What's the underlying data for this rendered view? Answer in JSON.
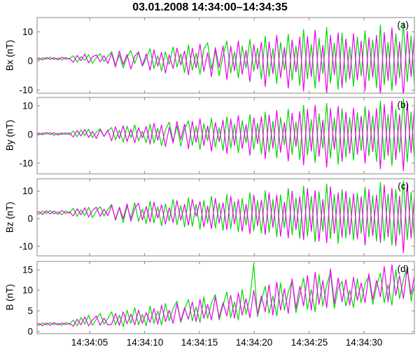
{
  "title": "03.01.2008 14:34:00–14:34:35",
  "colors": {
    "series1": "#00d900",
    "series2": "#ee00ee",
    "frame": "#888888",
    "text": "#000000"
  },
  "chart_data": {
    "type": "line",
    "title": "03.01.2008 14:34:00–14:34:35",
    "x": {
      "unit": "time (hh:mm:ss)",
      "start": 0,
      "step": 0.35,
      "lim": [
        0.2,
        34.6
      ],
      "ticks": [
        5,
        10,
        15,
        20,
        25,
        30
      ],
      "tick_labels": [
        "14:34:05",
        "14:34:10",
        "14:34:15",
        "14:34:20",
        "14:34:25",
        "14:34:30"
      ]
    },
    "panels": [
      {
        "label": "(a)",
        "ylabel": "Bx (nT)",
        "ylim": [
          -11.1,
          14.9
        ],
        "yticks": [
          10,
          0,
          -10
        ],
        "ytick_labels": [
          "10",
          "0",
          "-10"
        ],
        "series": [
          {
            "name": "green",
            "color_key": "series1",
            "values": [
              0.8,
              0.4,
              1.1,
              0.6,
              1.3,
              0.5,
              1.0,
              0.3,
              1.2,
              0.7,
              1.8,
              -0.4,
              1.5,
              0.2,
              2.2,
              -0.8,
              1.1,
              2.5,
              -0.2,
              1.6,
              3.2,
              -1.5,
              2.1,
              -2.4,
              1.4,
              3.6,
              -0.9,
              2.8,
              -1.8,
              0.9,
              4.2,
              -2.6,
              1.8,
              -3.5,
              3.1,
              -1.2,
              4.8,
              -2.1,
              2.4,
              -4.0,
              5.5,
              -3.2,
              2.6,
              -4.6,
              4.1,
              6.2,
              -2.8,
              3.4,
              -5.1,
              1.9,
              6.8,
              -4.2,
              3.1,
              -5.8,
              5.2,
              -2.4,
              7.4,
              -3.6,
              4.4,
              -6.2,
              8.5,
              -5.4,
              4.2,
              -7.8,
              6.4,
              -3.1,
              9.2,
              -6.6,
              5.1,
              -8.4,
              10.8,
              -6.2,
              5.6,
              -9.4,
              7.8,
              -4.4,
              11.5,
              -7.6,
              6.2,
              -9.8,
              9.6,
              -7.4,
              4.8,
              -8.8,
              8.2,
              -5.2,
              10.4,
              -6.8,
              7.2,
              -9.2,
              12.4,
              -8.2,
              6.4,
              -10.2,
              9.4,
              -5.8,
              13.0,
              -7.2,
              8.6,
              -10.6
            ]
          },
          {
            "name": "magenta",
            "color_key": "series2",
            "values": [
              0.6,
              1.0,
              0.3,
              1.2,
              0.5,
              1.1,
              0.4,
              1.3,
              0.6,
              0.9,
              -0.5,
              1.9,
              0.1,
              2.4,
              -0.7,
              1.4,
              2.1,
              -0.3,
              1.8,
              -0.9,
              2.6,
              -2.1,
              3.4,
              -1.2,
              2.2,
              -2.8,
              1.6,
              3.1,
              -1.6,
              2.4,
              -3.2,
              3.8,
              -1.8,
              2.9,
              -4.2,
              2.1,
              -2.6,
              4.4,
              -1.4,
              3.4,
              -4.8,
              4.4,
              -2.4,
              5.8,
              -3.6,
              2.8,
              -5.4,
              4.6,
              -2.2,
              5.2,
              -6.4,
              5.1,
              -3.4,
              6.8,
              -4.6,
              3.6,
              -7.1,
              5.6,
              -2.8,
              6.4,
              -8.8,
              6.6,
              -4.4,
              8.8,
              -5.8,
              4.6,
              -9.4,
              7.2,
              -3.8,
              8.2,
              -10.4,
              8.4,
              -5.4,
              10.6,
              -7.2,
              5.4,
              -11.2,
              8.8,
              -4.8,
              9.6,
              -9.2,
              7.6,
              -6.2,
              9.4,
              -6.6,
              6.8,
              -10.2,
              8.0,
              -5.6,
              8.8,
              -11.8,
              9.8,
              -6.8,
              11.4,
              -8.4,
              6.6,
              -12.2,
              10.2,
              -5.4,
              11.2
            ]
          }
        ]
      },
      {
        "label": "(b)",
        "ylabel": "By (nT)",
        "ylim": [
          -13.7,
          12.9
        ],
        "yticks": [
          10,
          0,
          -10
        ],
        "ytick_labels": [
          "10",
          "0",
          "-10"
        ],
        "series": [
          {
            "name": "green",
            "color_key": "series1",
            "values": [
              0.4,
              -0.2,
              0.6,
              0.1,
              0.7,
              -0.3,
              0.5,
              0.0,
              0.6,
              -0.1,
              1.2,
              -0.8,
              1.6,
              -0.4,
              1.9,
              -1.1,
              0.8,
              2.0,
              -0.6,
              1.3,
              2.4,
              -1.9,
              1.5,
              -2.7,
              2.9,
              -1.1,
              3.3,
              -2.2,
              1.1,
              -2.9,
              3.6,
              -3.0,
              2.2,
              -3.9,
              1.6,
              4.3,
              -2.4,
              3.0,
              -4.1,
              2.0,
              4.8,
              -3.8,
              2.9,
              -5.2,
              3.8,
              -2.2,
              5.6,
              -4.4,
              2.4,
              -5.6,
              6.2,
              -4.8,
              3.6,
              -6.4,
              4.8,
              -2.9,
              6.9,
              -5.2,
              3.9,
              -6.8,
              7.8,
              -6.1,
              4.6,
              -8.2,
              5.9,
              -3.6,
              8.8,
              -7.0,
              4.4,
              -8.8,
              10.2,
              -7.2,
              5.2,
              -9.8,
              7.2,
              -4.8,
              10.8,
              -8.2,
              5.8,
              -10.4,
              9.0,
              -8.0,
              6.0,
              -9.0,
              7.6,
              -5.6,
              9.8,
              -7.4,
              6.6,
              -9.4,
              11.6,
              -8.8,
              7.0,
              -10.8,
              8.8,
              -6.2,
              12.4,
              -9.6,
              7.8,
              -11.2
            ]
          },
          {
            "name": "magenta",
            "color_key": "series2",
            "values": [
              -0.3,
              0.5,
              -0.1,
              0.7,
              0.0,
              0.6,
              -0.2,
              0.5,
              0.1,
              0.6,
              -0.9,
              1.4,
              -0.5,
              1.8,
              -1.0,
              1.1,
              -1.4,
              1.7,
              -0.7,
              1.5,
              -2.2,
              2.7,
              -1.4,
              3.1,
              -2.5,
              1.8,
              -2.9,
              2.4,
              -1.2,
              2.8,
              -3.4,
              3.9,
              -2.0,
              3.3,
              -4.2,
              2.5,
              -3.0,
              4.5,
              -1.8,
              3.6,
              -5.0,
              4.6,
              -2.8,
              5.5,
              -3.9,
              3.0,
              -5.8,
              4.2,
              -2.5,
              5.0,
              -6.6,
              5.4,
              -3.8,
              6.6,
              -4.9,
              3.4,
              -7.2,
              5.8,
              -3.2,
              6.2,
              -8.4,
              6.8,
              -4.8,
              8.4,
              -6.2,
              4.2,
              -9.2,
              7.4,
              -4.2,
              8.0,
              -10.6,
              8.8,
              -5.8,
              10.2,
              -7.6,
              5.0,
              -11.4,
              9.0,
              -5.2,
              9.8,
              -9.4,
              7.8,
              -6.6,
              9.2,
              -7.0,
              6.4,
              -10.0,
              8.4,
              -6.0,
              9.0,
              -12.0,
              10.4,
              -7.4,
              11.6,
              -8.8,
              7.0,
              -12.6,
              10.8,
              -6.4,
              11.8
            ]
          }
        ]
      },
      {
        "label": "(c)",
        "ylabel": "Bz (nT)",
        "ylim": [
          -13.5,
          14.5
        ],
        "yticks": [
          10,
          0,
          -10
        ],
        "ytick_labels": [
          "10",
          "0",
          "-10"
        ],
        "series": [
          {
            "name": "green",
            "color_key": "series1",
            "values": [
              2.2,
              1.6,
              2.8,
              1.9,
              3.0,
              1.7,
              2.6,
              1.4,
              2.9,
              2.0,
              3.8,
              0.8,
              3.2,
              1.2,
              4.2,
              0.4,
              2.8,
              4.4,
              0.9,
              3.4,
              5.2,
              -0.6,
              3.9,
              -1.4,
              4.6,
              0.2,
              5.8,
              -1.0,
              3.5,
              -1.8,
              6.4,
              -1.6,
              4.4,
              -2.6,
              5.4,
              -0.8,
              7.0,
              -2.2,
              4.8,
              -3.0,
              7.6,
              -2.8,
              5.2,
              -3.8,
              6.6,
              -1.6,
              8.2,
              -3.4,
              5.6,
              -4.2,
              8.8,
              -3.6,
              6.2,
              -4.8,
              7.4,
              -2.4,
              9.4,
              -4.4,
              6.6,
              -5.2,
              10.2,
              -5.0,
              7.0,
              -6.6,
              8.6,
              -3.4,
              11.0,
              -5.8,
              7.6,
              -7.2,
              11.8,
              -6.4,
              8.2,
              -8.4,
              9.8,
              -4.6,
              12.6,
              -7.2,
              8.8,
              -9.0,
              10.6,
              -7.0,
              7.8,
              -7.8,
              9.2,
              -5.4,
              11.4,
              -6.6,
              8.4,
              -8.2,
              13.2,
              -8.0,
              9.0,
              -9.6,
              10.6,
              -6.0,
              13.8,
              -7.6,
              9.6,
              -10.4
            ]
          },
          {
            "name": "magenta",
            "color_key": "series2",
            "values": [
              1.8,
              2.6,
              1.5,
              2.9,
              1.7,
              2.8,
              1.6,
              3.0,
              1.9,
              2.5,
              1.0,
              3.6,
              1.4,
              4.0,
              0.6,
              3.0,
              4.2,
              0.8,
              3.5,
              1.1,
              4.8,
              -0.2,
              4.2,
              0.0,
              5.4,
              -0.9,
              3.8,
              5.6,
              -0.5,
              4.4,
              -1.2,
              6.0,
              0.2,
              5.0,
              -2.0,
              4.0,
              -1.4,
              6.6,
              -0.6,
              5.2,
              -2.4,
              7.0,
              0.8,
              6.2,
              -3.0,
              4.6,
              -3.6,
              7.4,
              -1.6,
              5.8,
              -4.0,
              8.2,
              -2.0,
              7.0,
              -4.6,
              5.2,
              -5.4,
              8.6,
              -2.6,
              6.8,
              -5.8,
              9.4,
              -3.2,
              8.6,
              -6.4,
              6.0,
              -7.0,
              10.0,
              -4.0,
              8.0,
              -7.6,
              11.0,
              -4.6,
              10.2,
              -8.2,
              7.0,
              -8.8,
              11.6,
              -5.4,
              9.4,
              -6.8,
              10.0,
              -5.8,
              9.0,
              -7.4,
              8.0,
              -9.6,
              10.6,
              -6.2,
              8.6,
              -8.6,
              12.2,
              -6.6,
              11.0,
              -9.8,
              8.2,
              -12.4,
              12.8,
              -7.0,
              10.2
            ]
          }
        ]
      },
      {
        "label": "(d)",
        "ylabel": "B (nT)",
        "ylim": [
          -0.5,
          17
        ],
        "yticks": [
          15,
          10,
          5,
          0
        ],
        "ytick_labels": [
          "15",
          "10",
          "5",
          "0"
        ],
        "series": [
          {
            "name": "green",
            "color_key": "series1",
            "values": [
              1.8,
              1.5,
              2.1,
              1.6,
              2.2,
              1.7,
              2.0,
              1.5,
              2.2,
              1.8,
              2.8,
              1.4,
              3.4,
              1.8,
              4.0,
              1.5,
              3.0,
              4.4,
              1.8,
              3.2,
              4.8,
              1.6,
              4.0,
              1.2,
              5.2,
              2.0,
              5.8,
              1.6,
              4.2,
              1.4,
              6.2,
              2.0,
              5.0,
              1.6,
              6.8,
              2.6,
              5.6,
              7.4,
              2.2,
              5.4,
              7.8,
              2.6,
              6.0,
              2.2,
              8.4,
              3.2,
              7.0,
              9.0,
              2.8,
              6.4,
              9.6,
              3.4,
              7.2,
              2.8,
              10.2,
              4.2,
              8.2,
              16.4,
              3.6,
              7.6,
              11.0,
              4.4,
              8.6,
              3.8,
              11.8,
              5.2,
              9.6,
              12.4,
              4.6,
              9.0,
              13.0,
              5.4,
              10.2,
              4.8,
              13.8,
              6.2,
              11.2,
              14.4,
              5.6,
              10.6,
              12.2,
              6.2,
              10.0,
              5.8,
              12.8,
              7.0,
              11.6,
              13.4,
              6.6,
              11.0,
              14.2,
              7.0,
              11.4,
              6.4,
              15.0,
              8.0,
              12.6,
              15.6,
              7.4,
              12.0
            ]
          },
          {
            "name": "magenta",
            "color_key": "series2",
            "values": [
              1.6,
              2.0,
              1.4,
              2.1,
              1.5,
              2.2,
              1.6,
              2.1,
              1.7,
              2.0,
              1.3,
              3.0,
              1.6,
              3.6,
              1.4,
              2.8,
              3.8,
              1.5,
              3.3,
              1.6,
              1.8,
              4.4,
              1.5,
              4.8,
              1.9,
              4.2,
              1.6,
              5.2,
              2.0,
              4.6,
              2.2,
              5.6,
              1.8,
              6.4,
              2.4,
              5.2,
              2.0,
              6.8,
              2.6,
              5.8,
              3.0,
              7.2,
              2.4,
              7.8,
              3.2,
              6.6,
              2.8,
              8.4,
              3.4,
              7.0,
              3.8,
              8.8,
              3.2,
              9.4,
              4.0,
              8.0,
              3.4,
              10.0,
              4.2,
              8.6,
              4.8,
              11.4,
              4.0,
              12.0,
              5.2,
              10.4,
              4.4,
              12.8,
              5.6,
              11.0,
              6.2,
              13.6,
              5.2,
              14.4,
              6.6,
              12.4,
              5.8,
              15.2,
              6.8,
              13.0,
              7.2,
              12.6,
              6.4,
              13.2,
              7.6,
              11.8,
              7.0,
              14.0,
              7.8,
              12.4,
              8.4,
              15.8,
              7.2,
              16.2,
              8.8,
              13.6,
              8.0,
              15.4,
              9.0,
              14.2
            ]
          }
        ]
      }
    ]
  }
}
